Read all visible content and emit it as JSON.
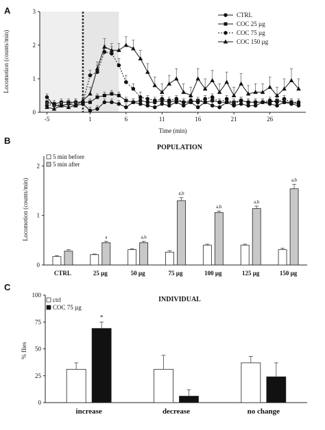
{
  "chart_data": [
    {
      "panel": "A",
      "type": "line",
      "xlabel": "Time (min)",
      "ylabel": "Locomotion (counts/min)",
      "xlim": [
        -6,
        31
      ],
      "ylim": [
        0,
        3
      ],
      "x_ticks": [
        -5,
        1,
        6,
        11,
        16,
        21,
        26
      ],
      "y_ticks": [
        0,
        1,
        2,
        3
      ],
      "shaded_regions": [
        [
          -6,
          0
        ],
        [
          0,
          5
        ]
      ],
      "injection_line_x": 0,
      "legend_position": "top-right",
      "x": [
        -5,
        -4,
        -3,
        -2,
        -1,
        0,
        1,
        2,
        3,
        4,
        5,
        6,
        7,
        8,
        9,
        10,
        11,
        12,
        13,
        14,
        15,
        16,
        17,
        18,
        19,
        20,
        21,
        22,
        23,
        24,
        25,
        26,
        27,
        28,
        29,
        30
      ],
      "series": [
        {
          "name": "CTRL",
          "marker": "circle-filled",
          "line": "solid",
          "values": [
            0.45,
            0.2,
            0.2,
            0.25,
            0.2,
            0.25,
            0.05,
            0.1,
            0.3,
            0.3,
            0.25,
            0.15,
            0.3,
            0.25,
            0.2,
            0.15,
            0.25,
            0.2,
            0.3,
            0.2,
            0.3,
            0.15,
            0.3,
            0.2,
            0.15,
            0.3,
            0.2,
            0.25,
            0.2,
            0.2,
            0.3,
            0.25,
            0.2,
            0.3,
            0.25,
            0.2
          ],
          "errors": [
            0.1,
            0.1,
            0.1,
            0.1,
            0.1,
            0.15,
            0.1,
            0.1,
            0.1,
            0.1,
            0.1,
            0.1,
            0.1,
            0.1,
            0.1,
            0.1,
            0.1,
            0.1,
            0.1,
            0.1,
            0.1,
            0.1,
            0.1,
            0.1,
            0.1,
            0.1,
            0.1,
            0.1,
            0.1,
            0.1,
            0.1,
            0.1,
            0.1,
            0.1,
            0.1,
            0.1
          ]
        },
        {
          "name": "COC 25 µg",
          "marker": "square-filled",
          "line": "solid",
          "values": [
            0.3,
            0.25,
            0.3,
            0.3,
            0.3,
            0.3,
            0.3,
            0.45,
            0.5,
            0.55,
            0.5,
            0.35,
            0.3,
            0.35,
            0.3,
            0.3,
            0.35,
            0.3,
            0.35,
            0.3,
            0.3,
            0.35,
            0.3,
            0.35,
            0.3,
            0.3,
            0.3,
            0.35,
            0.3,
            0.3,
            0.3,
            0.3,
            0.35,
            0.3,
            0.3,
            0.25
          ],
          "errors": [
            0.1,
            0.1,
            0.1,
            0.1,
            0.1,
            0.1,
            0.1,
            0.1,
            0.1,
            0.1,
            0.1,
            0.1,
            0.1,
            0.1,
            0.1,
            0.1,
            0.1,
            0.1,
            0.1,
            0.1,
            0.1,
            0.1,
            0.1,
            0.1,
            0.1,
            0.1,
            0.1,
            0.1,
            0.1,
            0.1,
            0.1,
            0.1,
            0.1,
            0.1,
            0.1,
            0.1
          ]
        },
        {
          "name": "COC 75 µg",
          "marker": "circle-filled",
          "line": "dotted",
          "values": [
            0.2,
            0.25,
            0.2,
            0.25,
            0.3,
            0.3,
            1.1,
            1.2,
            1.8,
            1.75,
            1.4,
            0.9,
            0.7,
            0.45,
            0.4,
            0.35,
            0.4,
            0.35,
            0.4,
            0.3,
            0.35,
            0.3,
            0.4,
            0.45,
            0.3,
            0.4,
            0.25,
            0.35,
            0.3,
            0.3,
            0.3,
            0.35,
            0.3,
            0.4,
            0.3,
            0.3
          ],
          "errors": [
            0.1,
            0.1,
            0.1,
            0.1,
            0.1,
            0.1,
            0.15,
            0.2,
            0.2,
            0.2,
            0.2,
            0.2,
            0.15,
            0.15,
            0.1,
            0.1,
            0.1,
            0.1,
            0.1,
            0.1,
            0.1,
            0.1,
            0.1,
            0.1,
            0.1,
            0.1,
            0.1,
            0.1,
            0.1,
            0.1,
            0.1,
            0.1,
            0.1,
            0.1,
            0.1,
            0.1
          ]
        },
        {
          "name": "COC 150 µg",
          "marker": "triangle-filled",
          "line": "solid",
          "values": [
            0.15,
            0.1,
            0.2,
            0.15,
            0.2,
            0.35,
            0.55,
            1.3,
            1.95,
            1.85,
            1.85,
            2.0,
            1.9,
            1.6,
            1.2,
            0.8,
            0.6,
            0.85,
            1.0,
            0.6,
            0.5,
            1.0,
            0.7,
            0.95,
            0.6,
            0.9,
            0.5,
            0.85,
            0.55,
            0.6,
            0.6,
            0.75,
            0.5,
            0.7,
            0.95,
            0.7
          ],
          "errors": [
            0.1,
            0.1,
            0.1,
            0.1,
            0.1,
            0.15,
            0.2,
            0.2,
            0.25,
            0.2,
            0.2,
            0.25,
            0.25,
            0.25,
            0.25,
            0.25,
            0.25,
            0.25,
            0.3,
            0.25,
            0.25,
            0.3,
            0.3,
            0.3,
            0.25,
            0.3,
            0.25,
            0.3,
            0.25,
            0.25,
            0.25,
            0.3,
            0.25,
            0.3,
            0.35,
            0.3
          ]
        }
      ]
    },
    {
      "panel": "B",
      "type": "bar",
      "title": "POPULATION",
      "ylabel": "Locomotion (counts/min)",
      "ylim": [
        0,
        2.2
      ],
      "y_ticks": [
        0,
        1,
        2
      ],
      "legend_position": "top-left",
      "categories": [
        "CTRL",
        "25 µg",
        "50 µg",
        "75 µg",
        "100 µg",
        "125 µg",
        "150 µg"
      ],
      "series": [
        {
          "name": "5 min before",
          "color": "#ffffff",
          "values": [
            0.17,
            0.21,
            0.31,
            0.26,
            0.4,
            0.4,
            0.31
          ],
          "errors": [
            0.02,
            0.01,
            0.02,
            0.03,
            0.02,
            0.02,
            0.03
          ]
        },
        {
          "name": "5 min after",
          "color": "#c8c8c8",
          "values": [
            0.28,
            0.45,
            0.45,
            1.3,
            1.06,
            1.14,
            1.54
          ],
          "errors": [
            0.03,
            0.03,
            0.03,
            0.06,
            0.03,
            0.05,
            0.09
          ]
        }
      ],
      "annotations": [
        "",
        "a",
        "a,b",
        "a,b",
        "a,b",
        "a,b",
        "a,b"
      ]
    },
    {
      "panel": "C",
      "type": "bar",
      "title": "INDIVIDUAL",
      "ylabel": "% flies",
      "ylim": [
        0,
        100
      ],
      "y_ticks": [
        0,
        25,
        50,
        75,
        100
      ],
      "legend_position": "top-left",
      "categories": [
        "increase",
        "decrease",
        "no change"
      ],
      "series": [
        {
          "name": "ctrl",
          "color": "#ffffff",
          "values": [
            31,
            31,
            37
          ],
          "errors": [
            6,
            13,
            6
          ]
        },
        {
          "name": "COC 75 µg",
          "color": "#111111",
          "values": [
            69,
            6,
            24
          ],
          "errors": [
            6,
            6,
            13
          ]
        }
      ],
      "annotations": [
        "*",
        "",
        ""
      ]
    }
  ]
}
